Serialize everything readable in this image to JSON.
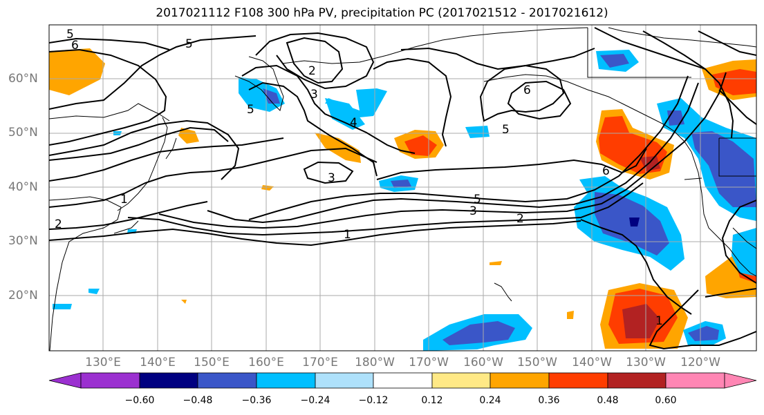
{
  "title": "2017021112 F108 300 hPa PV, precipitation PC (2017021512 - 2017021612)",
  "lat_labels": [
    "60°N",
    "50°N",
    "40°N",
    "30°N",
    "20°N"
  ],
  "lon_labels": [
    "130°E",
    "140°E",
    "150°E",
    "160°E",
    "170°E",
    "180°W",
    "170°W",
    "160°W",
    "150°W",
    "140°W",
    "130°W",
    "120°W"
  ],
  "contour_labels": [
    "5",
    "6",
    "5",
    "2",
    "3",
    "5",
    "4",
    "3",
    "6",
    "5",
    "1",
    "2",
    "5",
    "3",
    "2",
    "1",
    "6",
    "1"
  ],
  "colorbar": {
    "ticks": [
      "−0.60",
      "−0.48",
      "−0.36",
      "−0.24",
      "−0.12",
      "0.12",
      "0.24",
      "0.36",
      "0.48",
      "0.60"
    ],
    "colors": [
      "#9b30d0",
      "#000080",
      "#3a56c8",
      "#00bfff",
      "#aee1fb",
      "#ffffff",
      "#ffe986",
      "#ffa500",
      "#ff3d00",
      "#b22222",
      "#ff86b4"
    ]
  },
  "colors": {
    "land_outline": "#000000",
    "grid": "#aaaaaa",
    "contour": "#000000"
  }
}
